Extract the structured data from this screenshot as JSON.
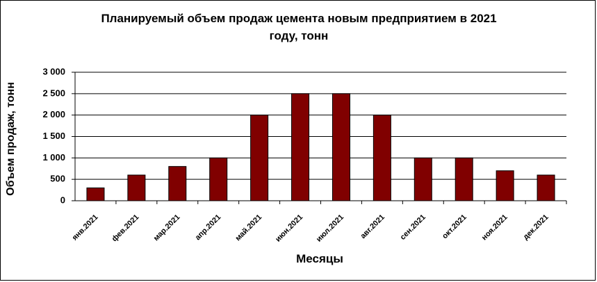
{
  "chart_data": {
    "type": "bar",
    "title": "Планируемый объем продаж цемента новым предприятием в 2021 году, тонн",
    "x_label": "Месяцы",
    "y_label": "Объем продаж, тонн",
    "categories": [
      "янв.2021",
      "фев.2021",
      "мар.2021",
      "апр.2021",
      "май.2021",
      "июн.2021",
      "июл.2021",
      "авг.2021",
      "сен.2021",
      "окт.2021",
      "ноя.2021",
      "дек.2021"
    ],
    "values": [
      300,
      600,
      800,
      1000,
      2000,
      2500,
      2500,
      2000,
      1000,
      1000,
      700,
      600
    ],
    "color": "#800000",
    "ylim": [
      0,
      3000
    ],
    "yticks": [
      0,
      500,
      {
        "value": 1000,
        "label": "1 000"
      },
      {
        "value": 1500,
        "label": "1 500"
      },
      {
        "value": 2000,
        "label": "2 000"
      },
      {
        "value": 2500,
        "label": "2 500"
      },
      {
        "value": 3000,
        "label": "3 000"
      }
    ],
    "grid": true
  }
}
